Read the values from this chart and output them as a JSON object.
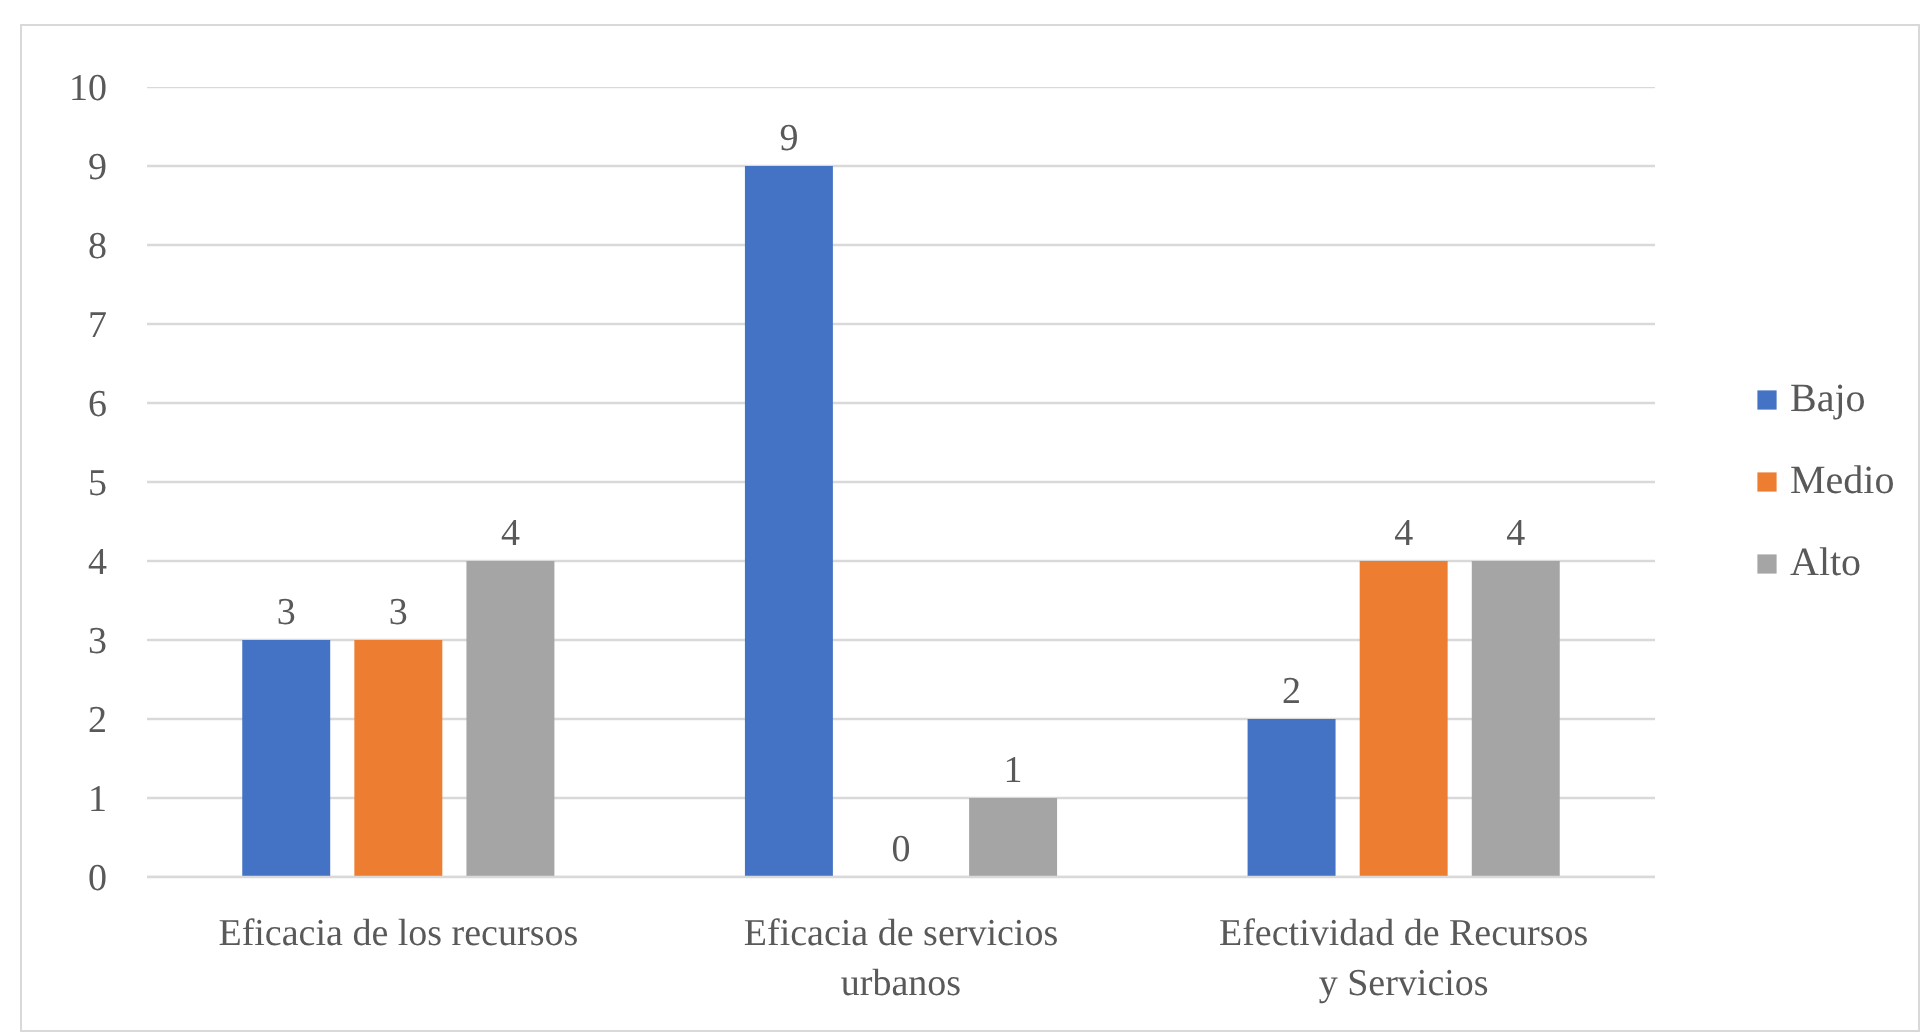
{
  "chart_data": {
    "type": "bar",
    "categories": [
      "Eficacia de los recursos",
      "Eficacia de servicios urbanos",
      "Efectividad de Recursos y Servicios"
    ],
    "series": [
      {
        "name": "Bajo",
        "color": "#4472c4",
        "values": [
          3,
          9,
          2
        ]
      },
      {
        "name": "Medio",
        "color": "#ed7d31",
        "values": [
          3,
          0,
          4
        ]
      },
      {
        "name": "Alto",
        "color": "#a5a5a5",
        "values": [
          4,
          1,
          4
        ]
      }
    ],
    "ylim": [
      0,
      10
    ],
    "yticks": [
      0,
      1,
      2,
      3,
      4,
      5,
      6,
      7,
      8,
      9,
      10
    ],
    "grid": "y",
    "legend": "right",
    "data_labels": true
  }
}
